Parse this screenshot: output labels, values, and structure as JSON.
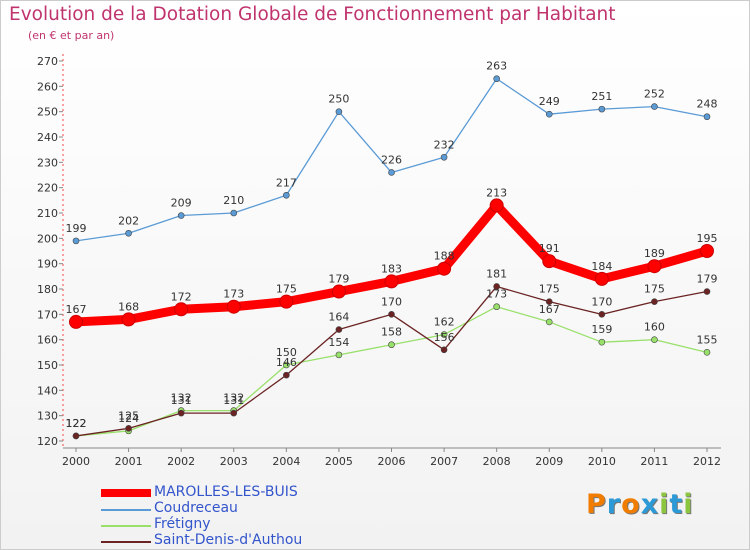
{
  "header": {
    "title": "Evolution de la Dotation Globale de Fonctionnement par Habitant",
    "subtitle": "(en € et par an)"
  },
  "chart_data": {
    "type": "line",
    "title": "Evolution de la Dotation Globale de Fonctionnement par Habitant",
    "subtitle": "(en € et par an)",
    "xlabel": "",
    "ylabel": "",
    "x": [
      "2000",
      "2001",
      "2002",
      "2003",
      "2004",
      "2005",
      "2006",
      "2007",
      "2008",
      "2009",
      "2010",
      "2011",
      "2012"
    ],
    "ylim": [
      120,
      270
    ],
    "yticks": [
      120,
      130,
      140,
      150,
      160,
      170,
      180,
      190,
      200,
      210,
      220,
      230,
      240,
      250,
      260,
      270
    ],
    "grid": false,
    "legend_position": "bottom-left",
    "series": [
      {
        "name": "MAROLLES-LES-BUIS",
        "color": "#ff0000",
        "values": [
          167,
          168,
          172,
          173,
          175,
          179,
          183,
          188,
          213,
          191,
          184,
          189,
          195
        ]
      },
      {
        "name": "Coudreceau",
        "color": "#5b9bd5",
        "values": [
          199,
          202,
          209,
          210,
          217,
          250,
          226,
          232,
          263,
          249,
          251,
          252,
          248
        ]
      },
      {
        "name": "Frétigny",
        "color": "#99e06b",
        "values": [
          122,
          124,
          132,
          132,
          150,
          154,
          158,
          162,
          173,
          167,
          159,
          160,
          155
        ]
      },
      {
        "name": "Saint-Denis-d'Authou",
        "color": "#6b2323",
        "values": [
          122,
          125,
          131,
          131,
          146,
          164,
          170,
          156,
          181,
          175,
          170,
          175,
          179
        ]
      }
    ]
  },
  "logo": {
    "letters": [
      "P",
      "r",
      "o",
      "x",
      "i",
      "t",
      "i"
    ],
    "colors": [
      "#f07d00",
      "#2c9ad6",
      "#f07d00",
      "#2c9ad6",
      "#8cc63f",
      "#2c9ad6",
      "#8cc63f"
    ]
  }
}
